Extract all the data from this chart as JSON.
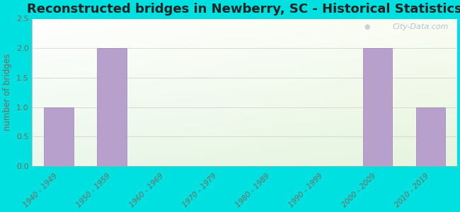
{
  "title": "Reconstructed bridges in Newberry, SC - Historical Statistics",
  "categories": [
    "1940 - 1949",
    "1950 - 1959",
    "1960 - 1969",
    "1970 - 1979",
    "1980 - 1989",
    "1990 - 1999",
    "2000 - 2009",
    "2010 - 2019"
  ],
  "values": [
    1,
    2,
    0,
    0,
    0,
    0,
    2,
    1
  ],
  "bar_color": "#b8a0cc",
  "bar_edge_color": "#9b85b5",
  "ylabel": "number of bridges",
  "ylim": [
    0,
    2.5
  ],
  "yticks": [
    0,
    0.5,
    1,
    1.5,
    2,
    2.5
  ],
  "background_color": "#00e0e0",
  "title_fontsize": 13,
  "title_color": "#222222",
  "axis_label_color": "#7a6a5a",
  "tick_label_color": "#7a6a5a",
  "watermark_text": "City-Data.com",
  "grid_color": "#cccccc",
  "grid_linewidth": 0.5,
  "fig_width": 6.5,
  "fig_height": 3.0,
  "dpi": 100
}
